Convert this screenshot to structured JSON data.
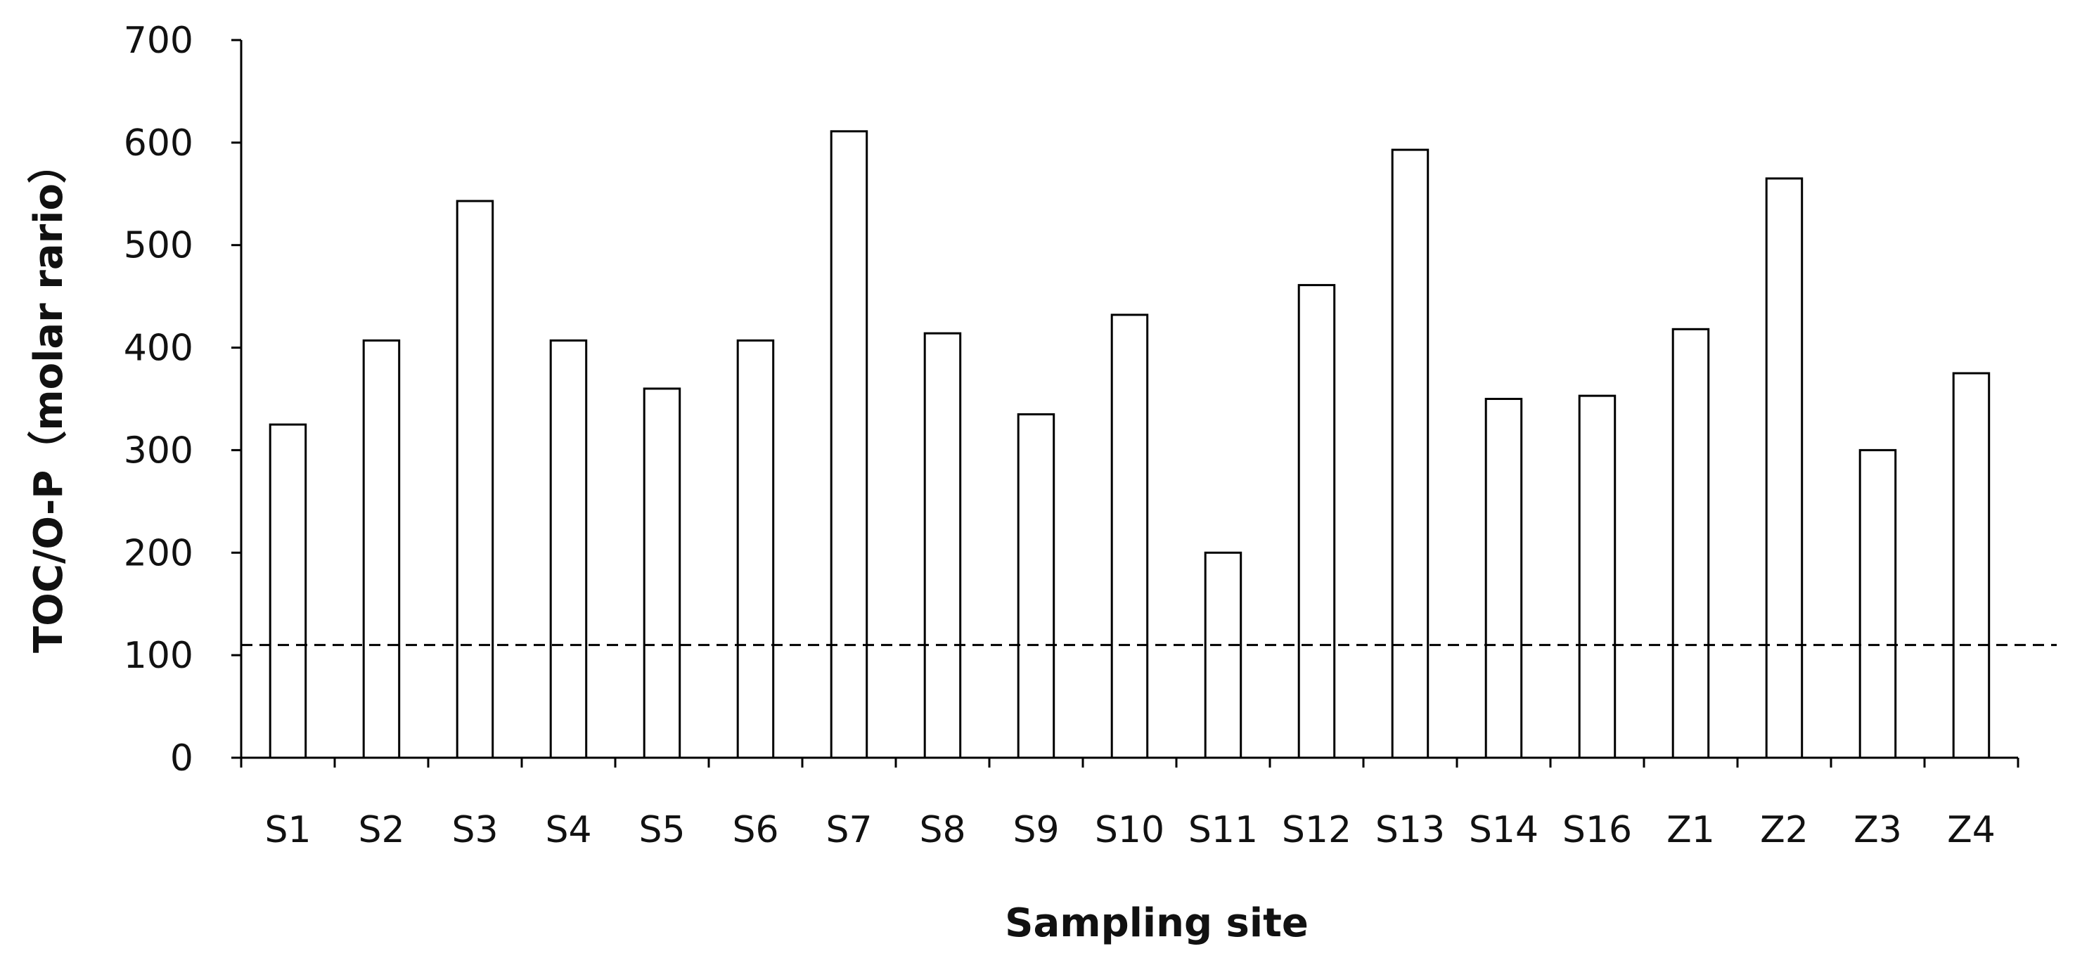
{
  "chart_data": {
    "type": "bar",
    "title": "",
    "xlabel": "Sampling site",
    "ylabel": "TOC/O-P（molar rario）",
    "categories": [
      "S1",
      "S2",
      "S3",
      "S4",
      "S5",
      "S6",
      "S7",
      "S8",
      "S9",
      "S10",
      "S11",
      "S12",
      "S13",
      "S14",
      "S16",
      "Z1",
      "Z2",
      "Z3",
      "Z4"
    ],
    "values": [
      325,
      407,
      543,
      407,
      360,
      407,
      611,
      414,
      335,
      432,
      200,
      461,
      593,
      350,
      353,
      418,
      565,
      300,
      375
    ],
    "ylim": [
      0,
      700
    ],
    "yticks": [
      0,
      100,
      200,
      300,
      400,
      500,
      600,
      700
    ],
    "reference_line": {
      "value": 110,
      "style": "dashed"
    },
    "grid": false,
    "legend": "none",
    "colors": {
      "bar_fill": "#ffffff",
      "bar_stroke": "#000000",
      "axis": "#000000",
      "text": "#111111"
    }
  }
}
